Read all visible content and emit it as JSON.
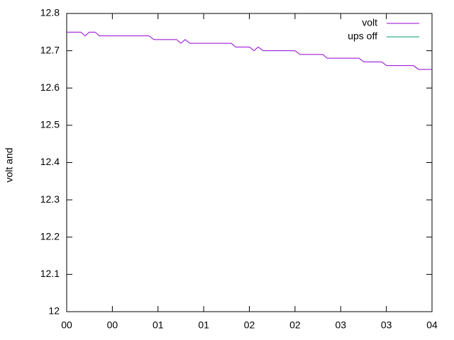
{
  "chart_data": {
    "type": "line",
    "ylabel": "volt and",
    "xlim": [
      0,
      4
    ],
    "xticks": [
      {
        "value": 0,
        "label": "00"
      },
      {
        "value": 0.5,
        "label": "00"
      },
      {
        "value": 1,
        "label": "01"
      },
      {
        "value": 1.5,
        "label": "01"
      },
      {
        "value": 2,
        "label": "02"
      },
      {
        "value": 2.5,
        "label": "02"
      },
      {
        "value": 3,
        "label": "03"
      },
      {
        "value": 3.5,
        "label": "03"
      },
      {
        "value": 4,
        "label": "04"
      }
    ],
    "ylim": [
      12,
      12.8
    ],
    "yticks": [
      12,
      12.1,
      12.2,
      12.3,
      12.4,
      12.5,
      12.6,
      12.7,
      12.8
    ],
    "legend": "top-right",
    "series": [
      {
        "name": "volt",
        "color": "#9400d3",
        "x": [
          0,
          0.155,
          0.202,
          0.249,
          0.311,
          0.357,
          0.901,
          0.955,
          1.204,
          1.25,
          1.297,
          1.35,
          1.802,
          1.849,
          2.003,
          2.05,
          2.097,
          2.151,
          2.501,
          2.555,
          2.804,
          2.851,
          3.2,
          3.254,
          3.449,
          3.503,
          3.798,
          3.853,
          4
        ],
        "values": [
          12.75,
          12.75,
          12.74,
          12.75,
          12.75,
          12.74,
          12.74,
          12.73,
          12.73,
          12.72,
          12.73,
          12.72,
          12.72,
          12.71,
          12.71,
          12.7,
          12.71,
          12.7,
          12.7,
          12.69,
          12.69,
          12.68,
          12.68,
          12.67,
          12.67,
          12.66,
          12.66,
          12.65,
          12.65
        ]
      },
      {
        "name": "ups off",
        "color": "#009e73",
        "x": [],
        "values": []
      }
    ]
  }
}
